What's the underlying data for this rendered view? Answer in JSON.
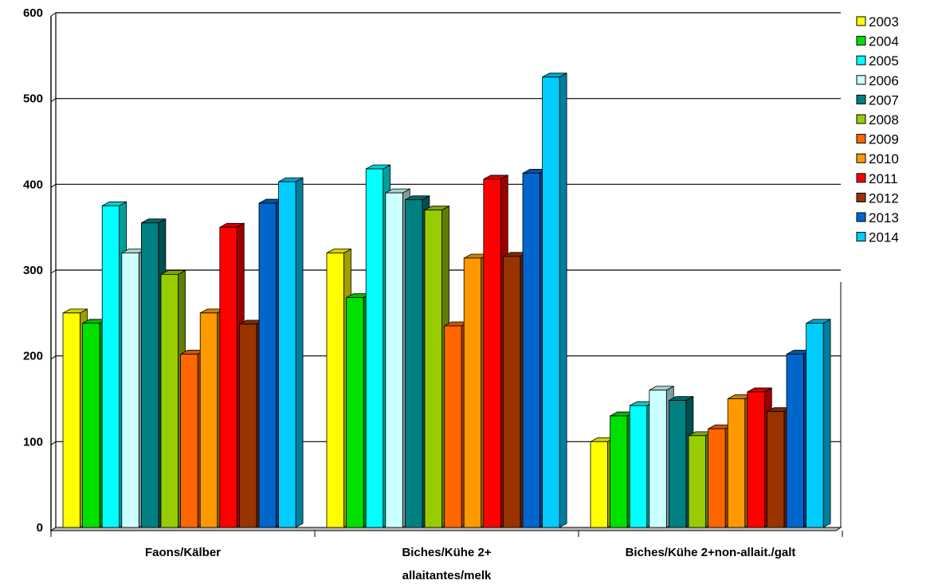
{
  "chart_data": {
    "type": "bar",
    "title": "",
    "xlabel": "",
    "ylabel": "",
    "ylim": [
      0,
      600
    ],
    "yticks": [
      0,
      100,
      200,
      300,
      400,
      500,
      600
    ],
    "grid": true,
    "legend": "right",
    "categories": [
      [
        "Faons/Kälber"
      ],
      [
        "Biches/Kühe 2+",
        "allaitantes/melk"
      ],
      [
        "Biches/Kühe 2+non-allait./galt"
      ]
    ],
    "series": [
      {
        "name": "2003",
        "color": "#ffff00",
        "values": [
          250,
          320,
          100
        ]
      },
      {
        "name": "2004",
        "color": "#00e000",
        "values": [
          238,
          268,
          130
        ]
      },
      {
        "name": "2005",
        "color": "#00ffff",
        "values": [
          375,
          418,
          142
        ]
      },
      {
        "name": "2006",
        "color": "#ccffff",
        "values": [
          320,
          390,
          160
        ]
      },
      {
        "name": "2007",
        "color": "#008080",
        "values": [
          355,
          382,
          148
        ]
      },
      {
        "name": "2008",
        "color": "#99cc00",
        "values": [
          295,
          370,
          107
        ]
      },
      {
        "name": "2009",
        "color": "#ff6600",
        "values": [
          202,
          235,
          115
        ]
      },
      {
        "name": "2010",
        "color": "#ff9900",
        "values": [
          250,
          314,
          150
        ]
      },
      {
        "name": "2011",
        "color": "#ff0000",
        "values": [
          350,
          406,
          158
        ]
      },
      {
        "name": "2012",
        "color": "#993300",
        "values": [
          237,
          316,
          135
        ]
      },
      {
        "name": "2013",
        "color": "#0066cc",
        "values": [
          378,
          413,
          202
        ]
      },
      {
        "name": "2014",
        "color": "#00ccff",
        "values": [
          403,
          525,
          238
        ]
      }
    ]
  }
}
